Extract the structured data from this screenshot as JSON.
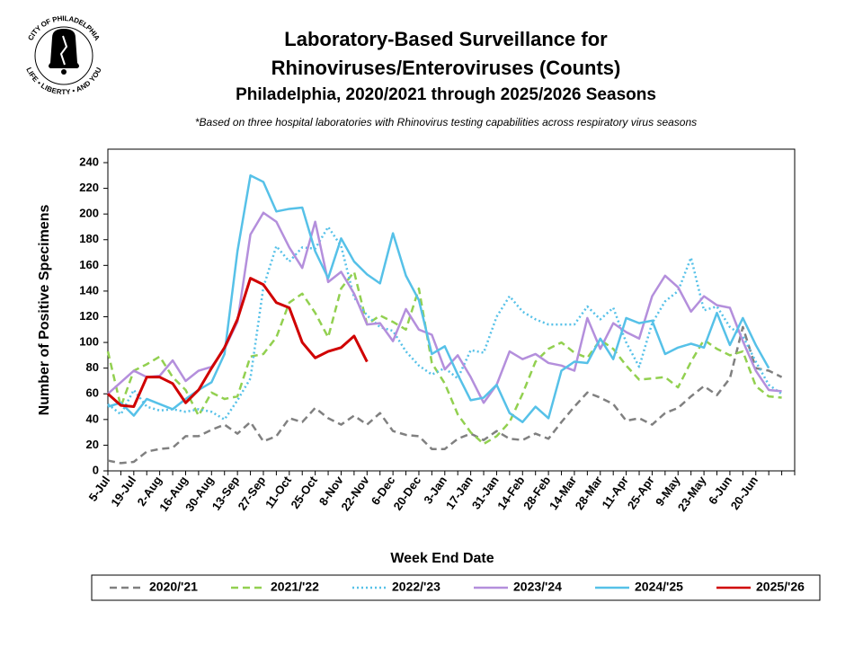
{
  "logo": {
    "top": "CITY OF PHILADELPHIA",
    "bottom": "LIFE • LIBERTY • AND YOU"
  },
  "chart_data": {
    "type": "line",
    "title": [
      "Laboratory-Based Surveillance for",
      "Rhinoviruses/Enteroviruses (Counts)"
    ],
    "subtitle": "Philadelphia, 2020/2021 through 2025/2026 Seasons",
    "note": "*Based on three hospital laboratories with Rhinovirus testing capabilities across respiratory virus seasons",
    "y_label": "Number of Positive Specimens",
    "x_label": "Week End Date",
    "categories": [
      "5-Jul",
      null,
      "19-Jul",
      null,
      "2-Aug",
      null,
      "16-Aug",
      null,
      "30-Aug",
      null,
      "13-Sep",
      null,
      "27-Sep",
      null,
      "11-Oct",
      null,
      "25-Oct",
      null,
      "8-Nov",
      null,
      "22-Nov",
      null,
      "6-Dec",
      null,
      "20-Dec",
      null,
      "3-Jan",
      null,
      "17-Jan",
      null,
      "31-Jan",
      null,
      "14-Feb",
      null,
      "28-Feb",
      null,
      "14-Mar",
      null,
      "28-Mar",
      null,
      "11-Apr",
      null,
      "25-Apr",
      null,
      "9-May",
      null,
      "23-May",
      null,
      "6-Jun",
      null,
      "20-Jun",
      null,
      null
    ],
    "ylim": [
      0,
      240
    ],
    "yticks": [
      0,
      20,
      40,
      60,
      80,
      100,
      120,
      140,
      160,
      180,
      200,
      220,
      240
    ],
    "series": [
      {
        "name": "2020/'21",
        "color": "#808080",
        "line_style": "dashed",
        "values": [
          8,
          6,
          7,
          15,
          17,
          18,
          27,
          27,
          32,
          36,
          29,
          38,
          23,
          27,
          41,
          38,
          49,
          41,
          36,
          43,
          36,
          45,
          31,
          28,
          27,
          17,
          17,
          25,
          29,
          24,
          31,
          25,
          24,
          29,
          25,
          38,
          50,
          61,
          57,
          52,
          39,
          41,
          36,
          45,
          49,
          58,
          66,
          59,
          72,
          112,
          80,
          78,
          73
        ]
      },
      {
        "name": "2021/'22",
        "color": "#92d050",
        "line_style": "dashed",
        "values": [
          93,
          50,
          78,
          83,
          89,
          73,
          63,
          43,
          61,
          56,
          58,
          89,
          91,
          104,
          131,
          138,
          123,
          104,
          142,
          155,
          114,
          121,
          116,
          110,
          142,
          84,
          68,
          44,
          30,
          21,
          27,
          38,
          60,
          85,
          95,
          100,
          92,
          88,
          102,
          95,
          82,
          71,
          72,
          73,
          65,
          85,
          102,
          95,
          90,
          93,
          66,
          58,
          57
        ]
      },
      {
        "name": "2022/'23",
        "color": "#56c1e8",
        "line_style": "dotted",
        "values": [
          52,
          44,
          63,
          50,
          47,
          48,
          46,
          48,
          46,
          40,
          55,
          72,
          143,
          175,
          163,
          174,
          173,
          190,
          175,
          135,
          121,
          112,
          109,
          93,
          82,
          75,
          80,
          72,
          94,
          92,
          120,
          136,
          124,
          118,
          114,
          114,
          114,
          128,
          118,
          127,
          100,
          81,
          115,
          132,
          140,
          166,
          125,
          128,
          112,
          105,
          85,
          67,
          60
        ]
      },
      {
        "name": "2023/'24",
        "color": "#b48fdc",
        "line_style": "solid",
        "values": [
          60,
          69,
          78,
          73,
          74,
          86,
          70,
          78,
          81,
          95,
          116,
          184,
          201,
          194,
          174,
          158,
          194,
          147,
          155,
          138,
          114,
          115,
          101,
          126,
          110,
          106,
          79,
          90,
          73,
          53,
          67,
          93,
          87,
          91,
          84,
          82,
          78,
          119,
          95,
          115,
          108,
          103,
          136,
          152,
          143,
          124,
          136,
          129,
          127,
          101,
          78,
          63,
          62
        ]
      },
      {
        "name": "2024/'25",
        "color": "#56c1e8",
        "line_style": "solid",
        "values": [
          50,
          53,
          43,
          56,
          52,
          48,
          56,
          63,
          69,
          91,
          171,
          230,
          225,
          202,
          204,
          205,
          171,
          150,
          181,
          163,
          153,
          146,
          185,
          152,
          133,
          91,
          97,
          75,
          55,
          57,
          67,
          45,
          38,
          50,
          41,
          78,
          85,
          84,
          103,
          87,
          119,
          115,
          117,
          91,
          96,
          99,
          96,
          123,
          98,
          119,
          98,
          80,
          null
        ]
      },
      {
        "name": "2025/'26",
        "color": "#d00000",
        "line_style": "solid",
        "values": [
          60,
          51,
          50,
          73,
          73,
          68,
          53,
          63,
          80,
          96,
          118,
          150,
          145,
          131,
          127,
          100,
          88,
          93,
          96,
          105,
          85,
          null,
          null,
          null,
          null,
          null,
          null,
          null,
          null,
          null,
          null,
          null,
          null,
          null,
          null,
          null,
          null,
          null,
          null,
          null,
          null,
          null,
          null,
          null,
          null,
          null,
          null,
          null,
          null,
          null,
          null,
          null,
          null
        ]
      }
    ],
    "legend": "bottom"
  }
}
